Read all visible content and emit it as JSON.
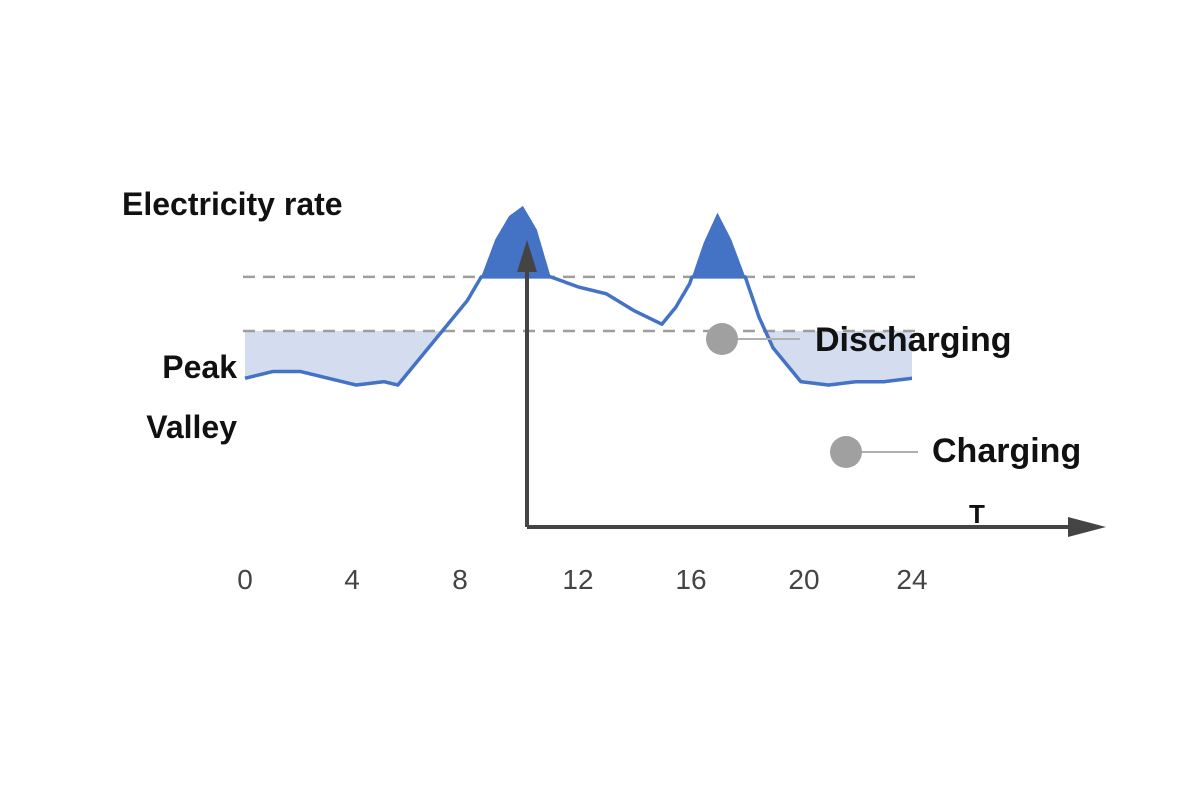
{
  "chart_data": {
    "type": "area",
    "title": "Electricity rate",
    "xlabel": "T",
    "ylabel": "",
    "x_ticks": [
      "0",
      "4",
      "8",
      "12",
      "16",
      "20",
      "24"
    ],
    "xlim": [
      0,
      24
    ],
    "reference_lines": [
      {
        "label": "Peak",
        "value": 0.74
      },
      {
        "label": "Valley",
        "value": 0.58
      }
    ],
    "annotations": [
      {
        "label": "Discharging",
        "applies_to": "above Peak"
      },
      {
        "label": "Charging",
        "applies_to": "below Valley"
      }
    ],
    "series": [
      {
        "x": [
          0,
          1,
          2,
          3,
          4,
          5,
          5.5,
          6,
          7,
          8,
          8.5,
          9,
          9.5,
          10,
          10.5,
          11,
          12,
          13,
          14,
          15,
          15.5,
          16,
          16.5,
          17,
          17.5,
          18,
          18.5,
          19,
          20,
          21,
          22,
          23,
          24
        ],
        "y": [
          0.44,
          0.46,
          0.46,
          0.44,
          0.42,
          0.43,
          0.42,
          0.47,
          0.57,
          0.67,
          0.74,
          0.85,
          0.92,
          0.95,
          0.88,
          0.74,
          0.71,
          0.69,
          0.64,
          0.6,
          0.65,
          0.72,
          0.84,
          0.93,
          0.85,
          0.74,
          0.62,
          0.53,
          0.43,
          0.42,
          0.43,
          0.43,
          0.44
        ]
      }
    ],
    "colors": {
      "line": "#4472c4",
      "discharge_fill": "#4472c4",
      "charge_fill": "#d4ddef",
      "reference_line": "#9e9e9e",
      "marker": "#a0a0a0",
      "axis": "#444444"
    }
  }
}
